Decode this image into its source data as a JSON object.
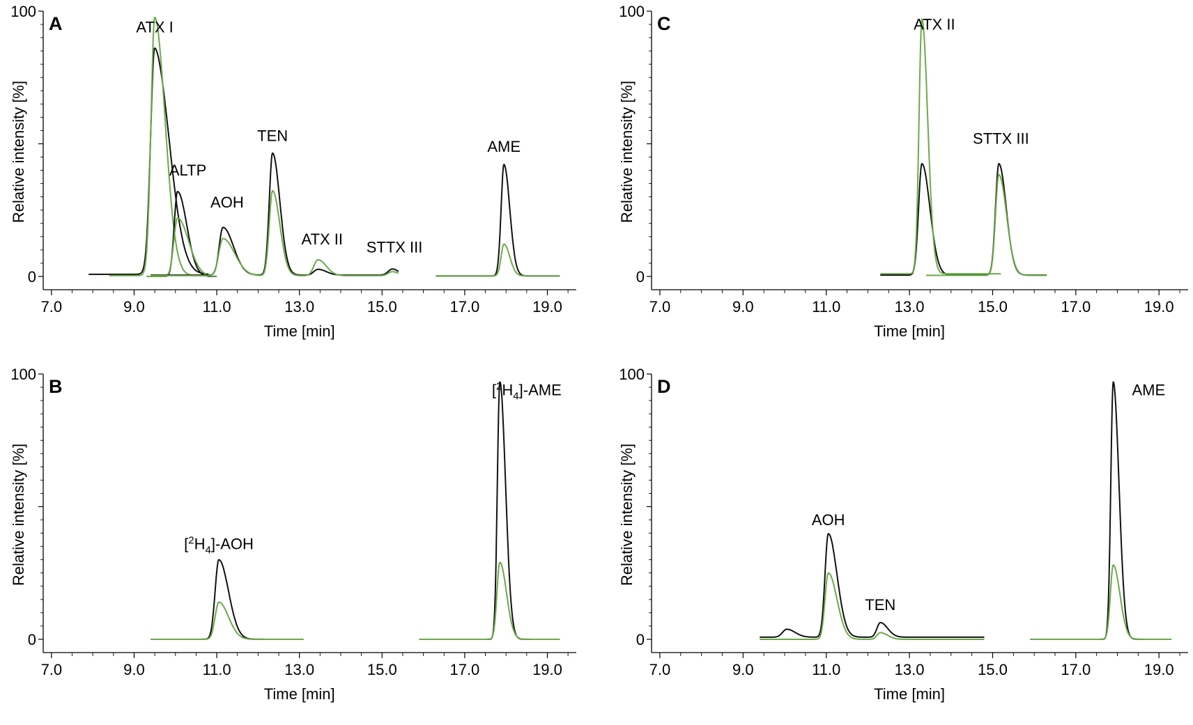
{
  "chart_data": [
    {
      "type": "line",
      "panel_label": "A",
      "xlabel": "Time [min]",
      "ylabel": "Relative intensity [%]",
      "xlim": [
        6.8,
        19.7
      ],
      "ylim": [
        -5,
        100
      ],
      "xticks": [
        "7.0",
        "9.0",
        "11.0",
        "13.0",
        "15.0",
        "17.0",
        "19.0"
      ],
      "yticks": [
        "0",
        "100"
      ],
      "series": [
        {
          "name": "black trace 1",
          "color": "#111111",
          "x_range": [
            7.9,
            10.8
          ],
          "baseline": 0.8,
          "peaks": [
            {
              "t": 9.45,
              "h": 2.5,
              "w": 0.12,
              "tail": 1.0
            },
            {
              "t": 9.5,
              "h": 83,
              "w": 0.1,
              "tail": 3.5
            }
          ]
        },
        {
          "name": "green trace 1",
          "color": "#6aaa4a",
          "x_range": [
            8.4,
            10.8
          ],
          "baseline": 0.3,
          "peaks": [
            {
              "t": 9.45,
              "h": 1.5,
              "w": 0.12,
              "tail": 1.0
            },
            {
              "t": 9.5,
              "h": 96,
              "w": 0.09,
              "tail": 2.8
            }
          ]
        },
        {
          "name": "black trace 2",
          "color": "#111111",
          "x_range": [
            9.3,
            11.0
          ],
          "baseline": 0,
          "peaks": [
            {
              "t": 10.05,
              "h": 32,
              "w": 0.08,
              "tail": 2.8
            }
          ]
        },
        {
          "name": "green trace 2",
          "color": "#6aaa4a",
          "x_range": [
            9.3,
            11.0
          ],
          "baseline": 0,
          "peaks": [
            {
              "t": 10.05,
              "h": 22,
              "w": 0.09,
              "tail": 3.0
            }
          ]
        },
        {
          "name": "black trace 3",
          "color": "#111111",
          "x_range": [
            9.4,
            15.4
          ],
          "baseline": 0.5,
          "peaks": [
            {
              "t": 11.15,
              "h": 18,
              "w": 0.09,
              "tail": 2.8
            },
            {
              "t": 12.35,
              "h": 46,
              "w": 0.08,
              "tail": 2.2
            },
            {
              "t": 13.45,
              "h": 2.2,
              "w": 0.1,
              "tail": 2.0
            },
            {
              "t": 15.25,
              "h": 2.3,
              "w": 0.1,
              "tail": 1.5
            }
          ]
        },
        {
          "name": "green trace 3",
          "color": "#6aaa4a",
          "x_range": [
            9.4,
            15.4
          ],
          "baseline": 0.3,
          "peaks": [
            {
              "t": 11.15,
              "h": 14,
              "w": 0.1,
              "tail": 2.8
            },
            {
              "t": 12.35,
              "h": 32,
              "w": 0.08,
              "tail": 2.2
            },
            {
              "t": 13.45,
              "h": 6,
              "w": 0.1,
              "tail": 2.0
            },
            {
              "t": 15.25,
              "h": 1.5,
              "w": 0.1,
              "tail": 1.5
            }
          ]
        },
        {
          "name": "black trace 4",
          "color": "#111111",
          "x_range": [
            16.3,
            19.3
          ],
          "baseline": 0.2,
          "peaks": [
            {
              "t": 17.95,
              "h": 42,
              "w": 0.07,
              "tail": 2.0
            }
          ]
        },
        {
          "name": "green trace 4",
          "color": "#6aaa4a",
          "x_range": [
            16.3,
            19.3
          ],
          "baseline": 0.2,
          "peaks": [
            {
              "t": 17.95,
              "h": 12,
              "w": 0.07,
              "tail": 2.0
            }
          ]
        }
      ],
      "annotations": [
        {
          "text": "ATX I",
          "x": 9.5,
          "y": 92
        },
        {
          "text": "ALTP",
          "x": 10.3,
          "y": 38
        },
        {
          "text": "AOH",
          "x": 11.25,
          "y": 26
        },
        {
          "text": "TEN",
          "x": 12.35,
          "y": 51
        },
        {
          "text": "ATX II",
          "x": 13.55,
          "y": 12
        },
        {
          "text": "STTX III",
          "x": 15.3,
          "y": 9
        },
        {
          "text": "AME",
          "x": 17.95,
          "y": 47
        }
      ]
    },
    {
      "type": "line",
      "panel_label": "B",
      "xlabel": "Time [min]",
      "ylabel": "Relative intensity [%]",
      "xlim": [
        6.8,
        19.7
      ],
      "ylim": [
        -5,
        100
      ],
      "xticks": [
        "7.0",
        "9.0",
        "11.0",
        "13.0",
        "15.0",
        "17.0",
        "19.0"
      ],
      "yticks": [
        "0",
        "100"
      ],
      "series": [
        {
          "name": "black trace 1",
          "color": "#111111",
          "x_range": [
            9.4,
            13.1
          ],
          "baseline": 0,
          "peaks": [
            {
              "t": 11.05,
              "h": 30,
              "w": 0.09,
              "tail": 2.6
            }
          ]
        },
        {
          "name": "green trace 1",
          "color": "#6aaa4a",
          "x_range": [
            9.4,
            13.1
          ],
          "baseline": 0,
          "peaks": [
            {
              "t": 11.05,
              "h": 14,
              "w": 0.09,
              "tail": 2.6
            }
          ]
        },
        {
          "name": "black trace 2",
          "color": "#111111",
          "x_range": [
            15.9,
            19.3
          ],
          "baseline": 0,
          "peaks": [
            {
              "t": 17.85,
              "h": 97,
              "w": 0.06,
              "tail": 2.3
            }
          ]
        },
        {
          "name": "green trace 2",
          "color": "#6aaa4a",
          "x_range": [
            15.9,
            19.3
          ],
          "baseline": 0,
          "peaks": [
            {
              "t": 17.85,
              "h": 29,
              "w": 0.07,
              "tail": 2.3
            }
          ]
        }
      ],
      "annotations": [
        {
          "text": "[2H4]-AOH",
          "x": 11.05,
          "y": 34
        },
        {
          "text": "[2H4]-AME",
          "x": 18.5,
          "y": 92
        }
      ]
    },
    {
      "type": "line",
      "panel_label": "C",
      "xlabel": "Time [min]",
      "ylabel": "Relative intensity [%]",
      "xlim": [
        6.8,
        19.7
      ],
      "ylim": [
        -5,
        100
      ],
      "xticks": [
        "7.0",
        "9.0",
        "11.0",
        "13.0",
        "15.0",
        "17.0",
        "19.0"
      ],
      "yticks": [
        "0",
        "100"
      ],
      "series": [
        {
          "name": "black trace 1",
          "color": "#111111",
          "x_range": [
            12.3,
            16.3
          ],
          "baseline": 0.5,
          "peaks": [
            {
              "t": 13.3,
              "h": 42,
              "w": 0.08,
              "tail": 2.4
            },
            {
              "t": 15.15,
              "h": 42,
              "w": 0.08,
              "tail": 2.2
            }
          ]
        },
        {
          "name": "green trace 1",
          "color": "#6aaa4a",
          "x_range": [
            12.3,
            15.2
          ],
          "baseline": 1.0,
          "peaks": [
            {
              "t": 13.3,
              "h": 96,
              "w": 0.07,
              "tail": 2.0
            }
          ]
        },
        {
          "name": "green trace 2",
          "color": "#6aaa4a",
          "x_range": [
            13.4,
            16.3
          ],
          "baseline": 0.4,
          "peaks": [
            {
              "t": 15.15,
              "h": 38,
              "w": 0.08,
              "tail": 2.3
            }
          ]
        }
      ],
      "annotations": [
        {
          "text": "ATX II",
          "x": 13.6,
          "y": 93
        },
        {
          "text": "STTX III",
          "x": 15.2,
          "y": 50
        }
      ]
    },
    {
      "type": "line",
      "panel_label": "D",
      "xlabel": "Time [min]",
      "ylabel": "Relative intensity [%]",
      "xlim": [
        6.8,
        19.7
      ],
      "ylim": [
        -5,
        100
      ],
      "xticks": [
        "7.0",
        "9.0",
        "11.0",
        "13.0",
        "15.0",
        "17.0",
        "19.0"
      ],
      "yticks": [
        "0",
        "100"
      ],
      "series": [
        {
          "name": "black trace 1",
          "color": "#111111",
          "x_range": [
            9.4,
            14.8
          ],
          "baseline": 0.8,
          "peaks": [
            {
              "t": 10.05,
              "h": 3,
              "w": 0.1,
              "tail": 2.0
            },
            {
              "t": 11.05,
              "h": 39,
              "w": 0.08,
              "tail": 2.6
            },
            {
              "t": 12.3,
              "h": 5.5,
              "w": 0.08,
              "tail": 2.2
            }
          ]
        },
        {
          "name": "green trace 1",
          "color": "#6aaa4a",
          "x_range": [
            9.4,
            14.8
          ],
          "baseline": 0,
          "peaks": [
            {
              "t": 11.05,
              "h": 25,
              "w": 0.08,
              "tail": 2.6
            },
            {
              "t": 12.3,
              "h": 2.5,
              "w": 0.08,
              "tail": 2.2
            }
          ]
        },
        {
          "name": "black trace 2",
          "color": "#111111",
          "x_range": [
            15.9,
            19.3
          ],
          "baseline": 0,
          "peaks": [
            {
              "t": 17.9,
              "h": 97,
              "w": 0.06,
              "tail": 2.3
            }
          ]
        },
        {
          "name": "green trace 2",
          "color": "#6aaa4a",
          "x_range": [
            15.9,
            19.3
          ],
          "baseline": 0,
          "peaks": [
            {
              "t": 17.9,
              "h": 28,
              "w": 0.07,
              "tail": 2.3
            }
          ]
        }
      ],
      "annotations": [
        {
          "text": "AOH",
          "x": 11.05,
          "y": 43
        },
        {
          "text": "TEN",
          "x": 12.3,
          "y": 11
        },
        {
          "text": "AME",
          "x": 18.75,
          "y": 92
        }
      ]
    }
  ]
}
